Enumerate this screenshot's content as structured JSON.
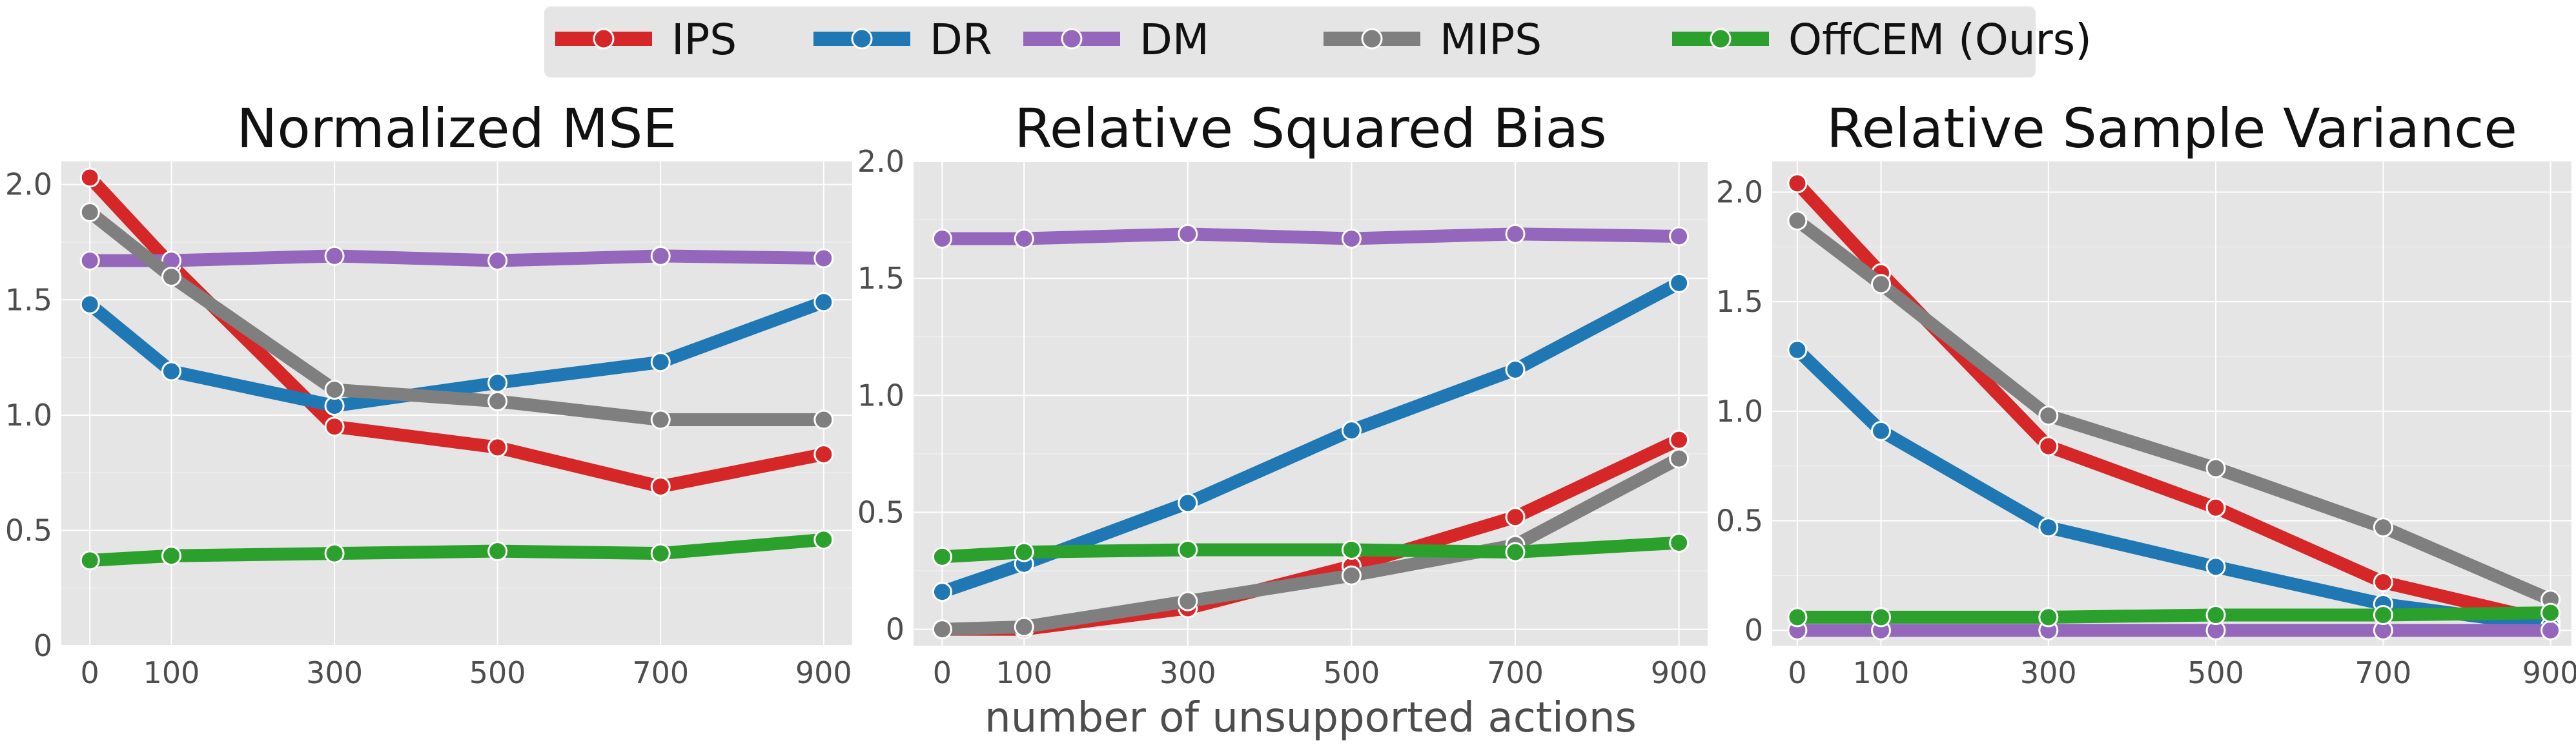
{
  "legend": {
    "entries": [
      {
        "name": "IPS",
        "color": "#d62728"
      },
      {
        "name": "DR",
        "color": "#1f77b4"
      },
      {
        "name": "DM",
        "color": "#9467bd"
      },
      {
        "name": "MIPS",
        "color": "#7f7f7f"
      },
      {
        "name": "OffCEM (Ours)",
        "color": "#2ca02c"
      }
    ],
    "placement": "top-center"
  },
  "xlabel": "number of unsupported actions",
  "colors": {
    "panel_background": "#e5e5e5",
    "grid": "#ffffff"
  },
  "chart_data": [
    {
      "type": "line",
      "title": "Normalized MSE",
      "x": [
        0,
        100,
        300,
        500,
        700,
        900
      ],
      "xticks": [
        "0",
        "100",
        "300",
        "500",
        "700",
        "900"
      ],
      "yticks": [
        "0",
        "0.5",
        "1.0",
        "1.5",
        "2.0"
      ],
      "ylim": [
        0,
        2.1
      ],
      "grid": true,
      "series": [
        {
          "name": "IPS",
          "values": [
            2.03,
            1.65,
            0.95,
            0.86,
            0.69,
            0.83
          ]
        },
        {
          "name": "DR",
          "values": [
            1.48,
            1.19,
            1.04,
            1.14,
            1.23,
            1.49
          ]
        },
        {
          "name": "DM",
          "values": [
            1.67,
            1.67,
            1.69,
            1.67,
            1.69,
            1.68
          ]
        },
        {
          "name": "MIPS",
          "values": [
            1.88,
            1.6,
            1.11,
            1.06,
            0.98,
            0.98
          ]
        },
        {
          "name": "OffCEM (Ours)",
          "values": [
            0.37,
            0.39,
            0.4,
            0.41,
            0.4,
            0.46
          ]
        }
      ]
    },
    {
      "type": "line",
      "title": "Relative Squared Bias",
      "x": [
        0,
        100,
        300,
        500,
        700,
        900
      ],
      "xticks": [
        "0",
        "100",
        "300",
        "500",
        "700",
        "900"
      ],
      "yticks": [
        "0",
        "0.5",
        "1.0",
        "1.5",
        "2.0"
      ],
      "ylim": [
        -0.07,
        2.0
      ],
      "grid": true,
      "series": [
        {
          "name": "IPS",
          "values": [
            0.0,
            0.0,
            0.09,
            0.27,
            0.48,
            0.81
          ]
        },
        {
          "name": "DR",
          "values": [
            0.16,
            0.28,
            0.54,
            0.85,
            1.11,
            1.48
          ]
        },
        {
          "name": "DM",
          "values": [
            1.67,
            1.67,
            1.69,
            1.67,
            1.69,
            1.68
          ]
        },
        {
          "name": "MIPS",
          "values": [
            0.0,
            0.01,
            0.12,
            0.23,
            0.36,
            0.73
          ]
        },
        {
          "name": "OffCEM (Ours)",
          "values": [
            0.31,
            0.33,
            0.34,
            0.34,
            0.33,
            0.37
          ]
        }
      ]
    },
    {
      "type": "line",
      "title": "Relative Sample Variance",
      "x": [
        0,
        100,
        300,
        500,
        700,
        900
      ],
      "xticks": [
        "0",
        "100",
        "300",
        "500",
        "700",
        "900"
      ],
      "yticks": [
        "0",
        "0.5",
        "1.0",
        "1.5",
        "2.0"
      ],
      "ylim": [
        -0.07,
        2.14
      ],
      "grid": true,
      "series": [
        {
          "name": "IPS",
          "values": [
            2.04,
            1.63,
            0.84,
            0.56,
            0.22,
            0.04
          ]
        },
        {
          "name": "DR",
          "values": [
            1.28,
            0.91,
            0.47,
            0.29,
            0.12,
            0.02
          ]
        },
        {
          "name": "DM",
          "values": [
            0.0,
            0.0,
            0.0,
            0.0,
            0.0,
            0.0
          ]
        },
        {
          "name": "MIPS",
          "values": [
            1.87,
            1.58,
            0.98,
            0.74,
            0.47,
            0.14
          ]
        },
        {
          "name": "OffCEM (Ours)",
          "values": [
            0.06,
            0.06,
            0.06,
            0.07,
            0.07,
            0.08
          ]
        }
      ]
    }
  ]
}
